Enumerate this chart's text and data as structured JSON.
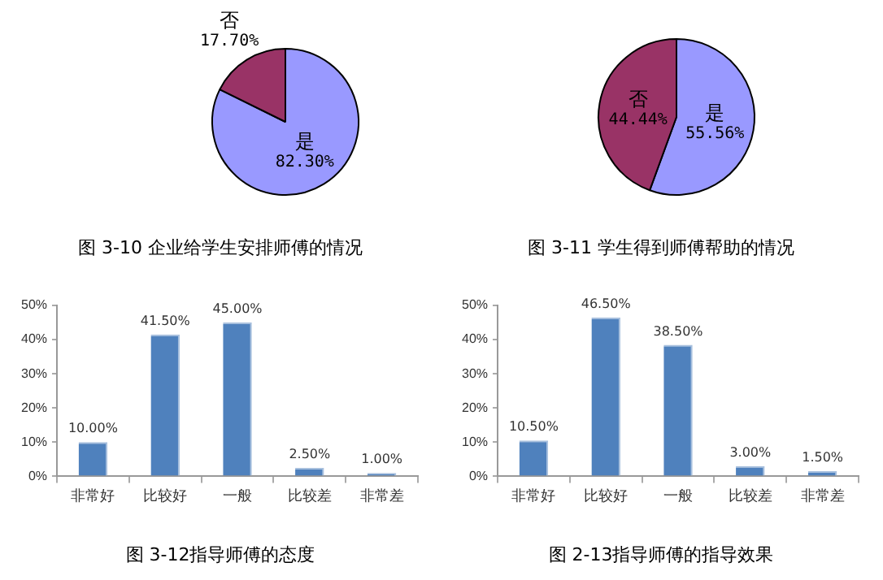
{
  "chart_data": [
    {
      "type": "pie",
      "title": "图 3-10 企业给学生安排师傅的情况",
      "categories": [
        "是",
        "否"
      ],
      "values": [
        82.3,
        17.7
      ],
      "colors": [
        "#9999ff",
        "#993366"
      ],
      "value_labels": [
        "82.30%",
        "17.70%"
      ]
    },
    {
      "type": "pie",
      "title": "图 3-11 学生得到师傅帮助的情况",
      "categories": [
        "是",
        "否"
      ],
      "values": [
        55.56,
        44.44
      ],
      "colors": [
        "#9999ff",
        "#993366"
      ],
      "value_labels": [
        "55.56%",
        "44.44%"
      ]
    },
    {
      "type": "bar",
      "title": "图 3-12指导师傅的态度",
      "categories": [
        "非常好",
        "比较好",
        "一般",
        "比较差",
        "非常差"
      ],
      "values": [
        10,
        41.5,
        45,
        2.5,
        1
      ],
      "color": "#4f81bd",
      "value_labels": [
        "10.00%",
        "41.50%",
        "45.00%",
        "2.50%",
        "1.00%"
      ],
      "ylim": [
        0,
        50
      ],
      "yticks": [
        {
          "value": 0,
          "label": "0%"
        },
        {
          "value": 10,
          "label": "10%"
        },
        {
          "value": 20,
          "label": "20%"
        },
        {
          "value": 30,
          "label": "30%"
        },
        {
          "value": 40,
          "label": "40%"
        },
        {
          "value": 50,
          "label": "50%"
        }
      ]
    },
    {
      "type": "bar",
      "title": "图 2-13指导师傅的指导效果",
      "categories": [
        "非常好",
        "比较好",
        "一般",
        "比较差",
        "非常差"
      ],
      "values": [
        10.5,
        46.5,
        38.5,
        3,
        1.5
      ],
      "color": "#4f81bd",
      "value_labels": [
        "10.50%",
        "46.50%",
        "38.50%",
        "3.00%",
        "1.50%"
      ],
      "ylim": [
        0,
        50
      ],
      "yticks": [
        {
          "value": 0,
          "label": "0%"
        },
        {
          "value": 10,
          "label": "10%"
        },
        {
          "value": 20,
          "label": "20%"
        },
        {
          "value": 30,
          "label": "30%"
        },
        {
          "value": 40,
          "label": "40%"
        },
        {
          "value": 50,
          "label": "50%"
        }
      ]
    }
  ]
}
